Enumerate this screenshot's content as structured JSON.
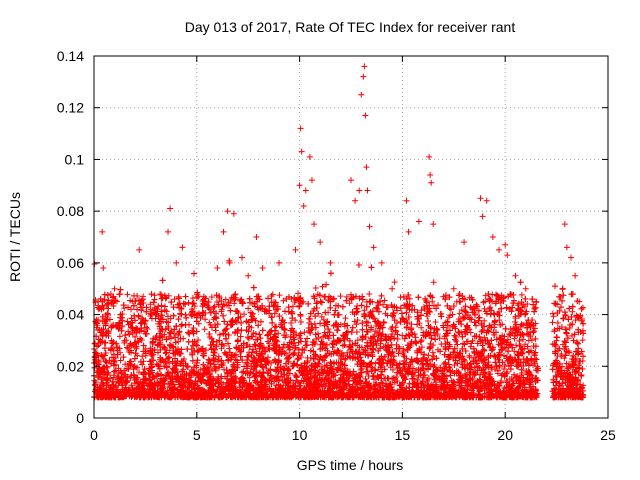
{
  "chart_data": {
    "type": "scatter",
    "title": "Day 013 of 2017, Rate Of TEC Index for receiver rant",
    "xlabel": "GPS time / hours",
    "ylabel": "ROTI / TECUs",
    "xlim": [
      0,
      25
    ],
    "ylim": [
      0,
      0.14
    ],
    "x_ticks": [
      0,
      5,
      10,
      15,
      20,
      25
    ],
    "x_tick_labels": [
      "0",
      "5",
      "10",
      "15",
      "20",
      "25"
    ],
    "y_ticks": [
      0,
      0.02,
      0.04,
      0.06,
      0.08,
      0.1,
      0.12,
      0.14
    ],
    "y_tick_labels": [
      "0",
      "0.02",
      "0.04",
      "0.06",
      "0.08",
      "0.1",
      "0.12",
      "0.14"
    ],
    "grid": true,
    "legend": "none",
    "marker": "+",
    "color": "#ff0000",
    "series": [
      {
        "x": [
          0.2,
          0.4,
          0.45,
          1.0,
          1.8,
          2.2,
          3.6,
          3.7,
          4.0,
          4.3,
          5.0,
          6.0,
          6.3,
          6.5,
          6.6,
          6.8,
          7.2,
          7.5,
          7.9,
          8.2,
          9.0,
          9.8,
          10.0,
          10.05,
          10.1,
          10.2,
          10.3,
          10.5,
          10.6,
          10.7,
          11.0,
          11.5,
          12.5,
          12.7,
          12.9,
          13.0,
          13.1,
          13.15,
          13.2,
          13.25,
          13.3,
          13.4,
          13.6,
          14.0,
          14.5,
          15.2,
          15.3,
          15.8,
          16.3,
          16.35,
          16.4,
          16.5,
          17.5,
          18.0,
          18.8,
          18.9,
          19.1,
          19.4,
          19.7,
          20.0,
          20.1,
          20.5,
          21.0,
          21.5,
          22.3,
          22.5,
          22.9,
          23.0,
          23.2,
          23.4,
          23.6
        ],
        "y": [
          0.045,
          0.072,
          0.058,
          0.05,
          0.042,
          0.065,
          0.072,
          0.081,
          0.06,
          0.066,
          0.04,
          0.058,
          0.072,
          0.08,
          0.06,
          0.079,
          0.062,
          0.055,
          0.07,
          0.058,
          0.06,
          0.065,
          0.09,
          0.112,
          0.103,
          0.082,
          0.088,
          0.101,
          0.092,
          0.075,
          0.068,
          0.06,
          0.092,
          0.084,
          0.088,
          0.125,
          0.132,
          0.136,
          0.117,
          0.097,
          0.088,
          0.074,
          0.066,
          0.06,
          0.05,
          0.084,
          0.072,
          0.076,
          0.101,
          0.094,
          0.091,
          0.075,
          0.05,
          0.068,
          0.085,
          0.078,
          0.084,
          0.07,
          0.065,
          0.067,
          0.063,
          0.055,
          0.05,
          0.045,
          0.037,
          0.03,
          0.075,
          0.066,
          0.062,
          0.055,
          0.045
        ]
      }
    ]
  }
}
